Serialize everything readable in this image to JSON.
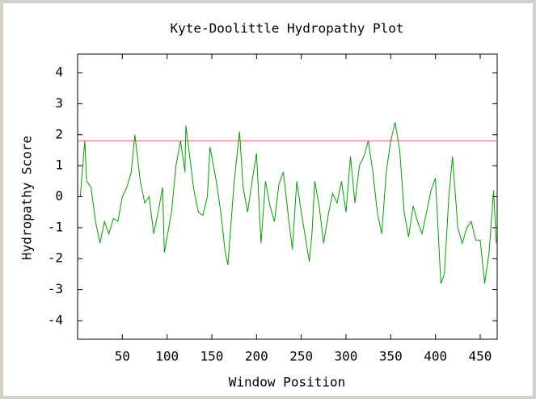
{
  "chart_data": {
    "type": "line",
    "title": "Kyte-Doolittle Hydropathy Plot",
    "x_label": "Window Position",
    "y_label": "Hydropathy Score",
    "x": [
      3,
      8,
      10,
      15,
      20,
      25,
      30,
      35,
      40,
      45,
      50,
      55,
      60,
      64,
      70,
      75,
      80,
      85,
      90,
      95,
      97,
      105,
      110,
      115,
      120,
      121,
      130,
      135,
      140,
      145,
      148,
      155,
      160,
      165,
      168,
      175,
      181,
      185,
      190,
      195,
      200,
      205,
      210,
      215,
      220,
      225,
      230,
      235,
      240,
      245,
      250,
      259,
      262,
      265,
      270,
      275,
      280,
      285,
      290,
      295,
      300,
      305,
      310,
      315,
      320,
      325,
      330,
      335,
      340,
      345,
      350,
      355,
      360,
      365,
      370,
      375,
      380,
      385,
      390,
      395,
      400,
      406,
      410,
      415,
      419,
      425,
      430,
      435,
      440,
      445,
      450,
      455,
      460,
      465,
      468
    ],
    "series": [
      {
        "name": "Hydropathy",
        "color": "#00a000",
        "values": [
          0,
          1.8,
          0.5,
          0.3,
          -0.8,
          -1.5,
          -0.8,
          -1.2,
          -0.7,
          -0.8,
          0,
          0.3,
          0.8,
          2.0,
          0.5,
          -0.2,
          0,
          -1.2,
          -0.5,
          0.3,
          -1.8,
          -0.5,
          1.0,
          1.8,
          0.8,
          2.3,
          0.2,
          -0.5,
          -0.6,
          0,
          1.6,
          0.5,
          -0.5,
          -1.8,
          -2.2,
          0.5,
          2.1,
          0.3,
          -0.5,
          0.5,
          1.4,
          -1.5,
          0.5,
          -0.3,
          -0.8,
          0.4,
          0.8,
          -0.5,
          -1.7,
          0.5,
          -0.5,
          -2.1,
          -1.2,
          0.5,
          -0.3,
          -1.5,
          -0.6,
          0.1,
          -0.2,
          0.5,
          -0.5,
          1.3,
          -0.2,
          1.0,
          1.3,
          1.8,
          0.8,
          -0.5,
          -1.2,
          0.8,
          1.8,
          2.4,
          1.5,
          -0.5,
          -1.3,
          -0.3,
          -0.8,
          -1.2,
          -0.5,
          0.2,
          0.6,
          -2.8,
          -2.5,
          0,
          1.3,
          -1.0,
          -1.5,
          -1.0,
          -0.8,
          -1.4,
          -1.4,
          -2.8,
          -1.8,
          0.2,
          -1.5
        ]
      }
    ],
    "threshold": {
      "value": 1.8,
      "color": "#e06060"
    },
    "xlim": [
      0,
      469
    ],
    "ylim": [
      -4.6,
      4.6
    ],
    "xticks": [
      50,
      100,
      150,
      200,
      250,
      300,
      350,
      400,
      450
    ],
    "yticks": [
      -4,
      -3,
      -2,
      -1,
      0,
      1,
      2,
      3,
      4
    ]
  }
}
